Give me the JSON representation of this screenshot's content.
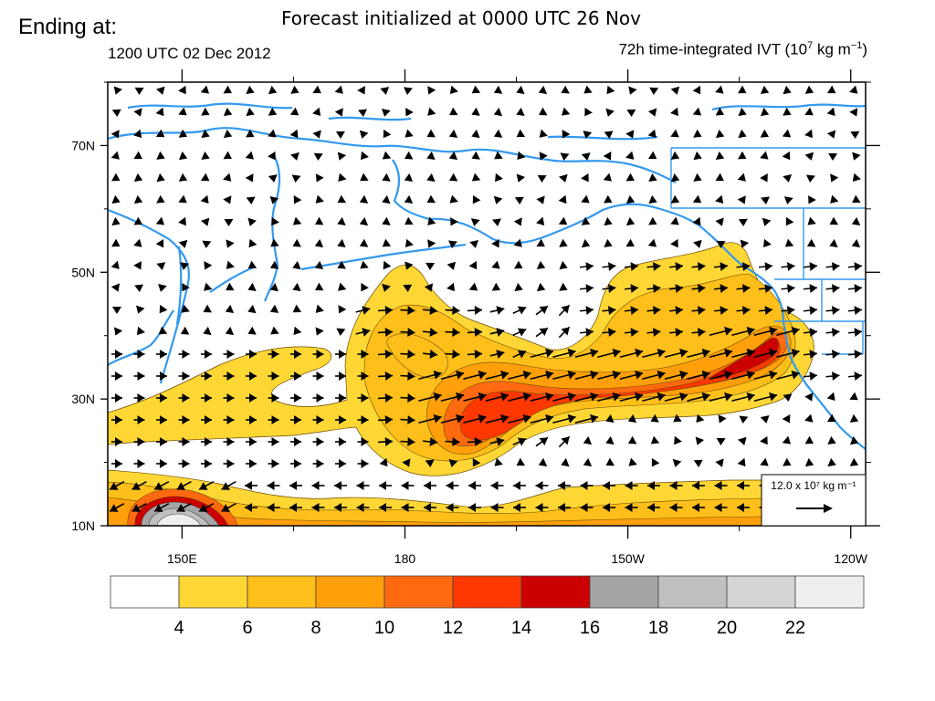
{
  "header": {
    "ending_label": "Ending at:",
    "forecast_title": "Forecast initialized at 0000 UTC 26 Nov",
    "valid_time": "1200 UTC 02 Dec 2012",
    "field_title_prefix": "72h time-integrated IVT (10",
    "field_title_exp1": "7",
    "field_title_mid": " kg m",
    "field_title_exp2": "−1",
    "field_title_suffix": ")"
  },
  "map": {
    "lat_labels": [
      "70N",
      "50N",
      "30N",
      "10N"
    ],
    "lon_labels": [
      "150E",
      "180",
      "150W",
      "120W"
    ],
    "lat_values": [
      70,
      50,
      30,
      10
    ],
    "lon_values": [
      150,
      180,
      -150,
      -120
    ],
    "lat_range": [
      10,
      80
    ],
    "lon_range": [
      140,
      -118
    ],
    "coastline_color": "#3399ee",
    "arrow_color": "#000000"
  },
  "reference_vector": {
    "label": "12.0 x 10⁷ kg m⁻¹",
    "value": 12.0
  },
  "colorbar": {
    "levels": [
      4,
      6,
      8,
      10,
      12,
      14,
      16,
      18,
      20,
      22
    ],
    "labels": [
      "4",
      "6",
      "8",
      "10",
      "12",
      "14",
      "16",
      "18",
      "20",
      "22"
    ],
    "colors": [
      "#ffffff",
      "#ffd735",
      "#ffbf1a",
      "#ffa00a",
      "#ff6a10",
      "#ff3700",
      "#cc0000",
      "#a5a5a5",
      "#c0c0c0",
      "#d4d4d4",
      "#efefef"
    ]
  }
}
